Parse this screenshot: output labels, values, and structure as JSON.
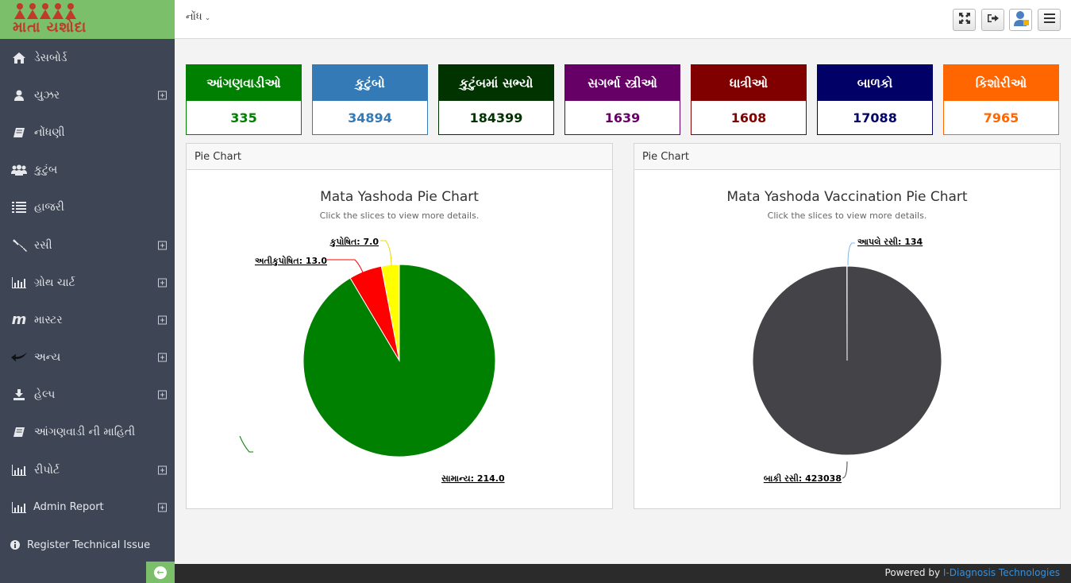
{
  "app": {
    "logo_text": "માતા યશોદા",
    "top_menu": "નોંધ"
  },
  "sidebar": {
    "items": [
      {
        "label": "ડેસબોર્ડ",
        "icon": "home-icon",
        "expandable": false
      },
      {
        "label": "યુઝર",
        "icon": "user-icon",
        "expandable": true
      },
      {
        "label": "નોંધણી",
        "icon": "book-icon",
        "expandable": false
      },
      {
        "label": "કુટુંબ",
        "icon": "users-icon",
        "expandable": false
      },
      {
        "label": "હાજરી",
        "icon": "list-icon",
        "expandable": false
      },
      {
        "label": "રસી",
        "icon": "syringe-icon",
        "expandable": true
      },
      {
        "label": "ગ્રોથ ચાર્ટ",
        "icon": "bar-chart-icon",
        "expandable": true
      },
      {
        "label": "માસ્ટર",
        "icon": "m-icon",
        "expandable": true
      },
      {
        "label": "અન્ય",
        "icon": "reply-icon",
        "expandable": true
      },
      {
        "label": "હેલ્પ",
        "icon": "download-icon",
        "expandable": true
      },
      {
        "label": "આંગણવાડી ની માહિતી",
        "icon": "book-icon",
        "expandable": false
      },
      {
        "label": "રીપોર્ટ",
        "icon": "bar-chart-icon",
        "expandable": true
      },
      {
        "label": "Admin Report",
        "icon": "bar-chart-icon",
        "expandable": true
      },
      {
        "label": "Register Technical Issue",
        "icon": "info-icon",
        "expandable": false
      }
    ]
  },
  "stats": [
    {
      "label": "આંગણવાડીઓ",
      "value": "335",
      "color": "#008000"
    },
    {
      "label": "કુટુંબો",
      "value": "34894",
      "color": "#337ab7"
    },
    {
      "label": "કુટુંબમાં સભ્યો",
      "value": "184399",
      "color": "#003300"
    },
    {
      "label": "સગર્ભા સ્ત્રીઓ",
      "value": "1639",
      "color": "#660066"
    },
    {
      "label": "ધાત્રીઓ",
      "value": "1608",
      "color": "#800000"
    },
    {
      "label": "બાળકો",
      "value": "17088",
      "color": "#000066"
    },
    {
      "label": "કિશોરીઓ",
      "value": "7965",
      "color": "#ff6600"
    }
  ],
  "panels": [
    {
      "header": "Pie Chart",
      "chart_data": {
        "type": "pie",
        "title": "Mata Yashoda Pie Chart",
        "subtitle": "Click the slices to view more details.",
        "slices": [
          {
            "name": "સામાન્ય",
            "value": 214.0,
            "label": "સામાન્ય: 214.0",
            "color": "#008000"
          },
          {
            "name": "અતીકુપોષિત",
            "value": 13.0,
            "label": "અતીકુપોષિત: 13.0",
            "color": "#ff0000"
          },
          {
            "name": "કુપોષિત",
            "value": 7.0,
            "label": "કુપોષિત: 7.0",
            "color": "#ffff00"
          }
        ]
      }
    },
    {
      "header": "Pie Chart",
      "chart_data": {
        "type": "pie",
        "title": "Mata Yashoda Vaccination Pie Chart",
        "subtitle": "Click the slices to view more details.",
        "slices": [
          {
            "name": "બાકી રસી",
            "value": 423038,
            "label": "બાકી રસી: 423038",
            "color": "#434348"
          },
          {
            "name": "આપલે રસી",
            "value": 134,
            "label": "આપલે રસી: 134",
            "color": "#7cb5ec"
          }
        ]
      }
    }
  ],
  "footer": {
    "prefix": "Powered by ",
    "company": "I-Diagnosis Technologies"
  }
}
